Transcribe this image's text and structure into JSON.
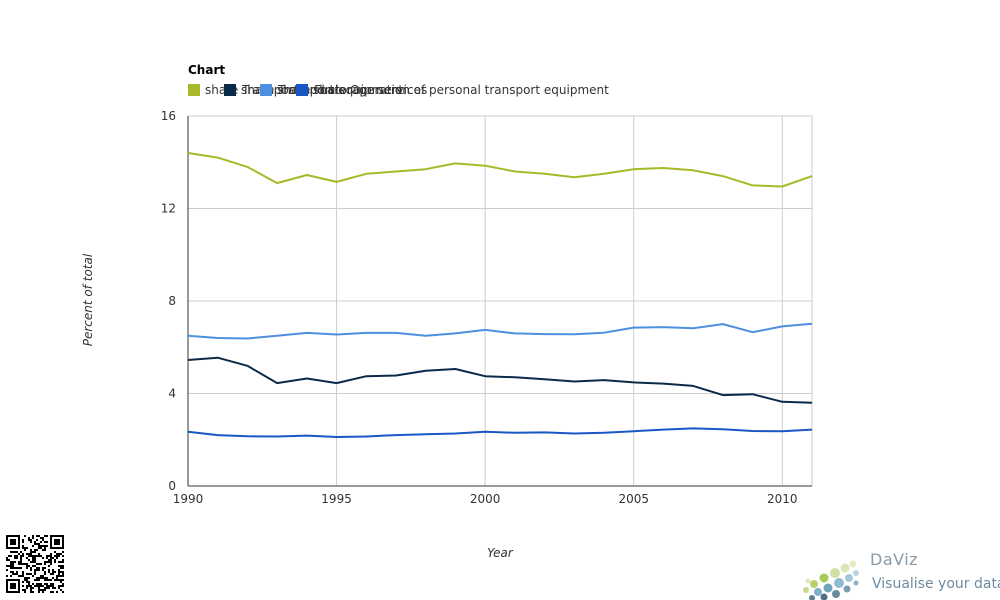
{
  "chart_data": {
    "type": "line",
    "title": "Chart",
    "xlabel": "Year",
    "ylabel": "Percent of total",
    "xlim": [
      1990,
      2011
    ],
    "ylim": [
      0,
      16
    ],
    "x_ticks": [
      1990,
      1995,
      2000,
      2005,
      2010
    ],
    "y_ticks": [
      0,
      4,
      8,
      12,
      16
    ],
    "grid": true,
    "legend_position": "top-left",
    "x": [
      1990,
      1991,
      1992,
      1993,
      1994,
      1995,
      1996,
      1997,
      1998,
      1999,
      2000,
      2001,
      2002,
      2003,
      2004,
      2005,
      2006,
      2007,
      2008,
      2009,
      2010,
      2011
    ],
    "series": [
      {
        "name": "share Transport and storage services",
        "color": "#a8b826",
        "values": [
          14.4,
          14.2,
          13.8,
          13.1,
          13.45,
          13.15,
          13.5,
          13.6,
          13.7,
          13.95,
          13.85,
          13.6,
          13.5,
          13.35,
          13.5,
          13.7,
          13.75,
          13.65,
          13.4,
          13.0,
          12.95,
          13.4
        ]
      },
      {
        "name": "share Transport equipment",
        "color": "#0a2a4a",
        "values": [
          5.45,
          5.55,
          5.2,
          4.45,
          4.65,
          4.45,
          4.75,
          4.78,
          4.98,
          5.06,
          4.75,
          4.7,
          4.62,
          4.52,
          4.58,
          4.48,
          4.43,
          4.33,
          3.93,
          3.97,
          3.64,
          3.6
        ]
      },
      {
        "name": "share Fuels",
        "color": "#4f8fe0",
        "values": [
          6.5,
          6.4,
          6.38,
          6.5,
          6.62,
          6.55,
          6.62,
          6.62,
          6.5,
          6.6,
          6.75,
          6.6,
          6.57,
          6.56,
          6.63,
          6.85,
          6.87,
          6.82,
          7.0,
          6.65,
          6.9,
          7.02
        ]
      },
      {
        "name": "share Operation of personal transport equipment",
        "color": "#1a56c4",
        "values": [
          2.35,
          2.2,
          2.15,
          2.14,
          2.18,
          2.12,
          2.14,
          2.2,
          2.24,
          2.27,
          2.35,
          2.3,
          2.32,
          2.27,
          2.3,
          2.37,
          2.44,
          2.49,
          2.45,
          2.38,
          2.37,
          2.44
        ]
      }
    ]
  },
  "branding": {
    "name": "DaViz",
    "tagline": "Visualise your data"
  }
}
